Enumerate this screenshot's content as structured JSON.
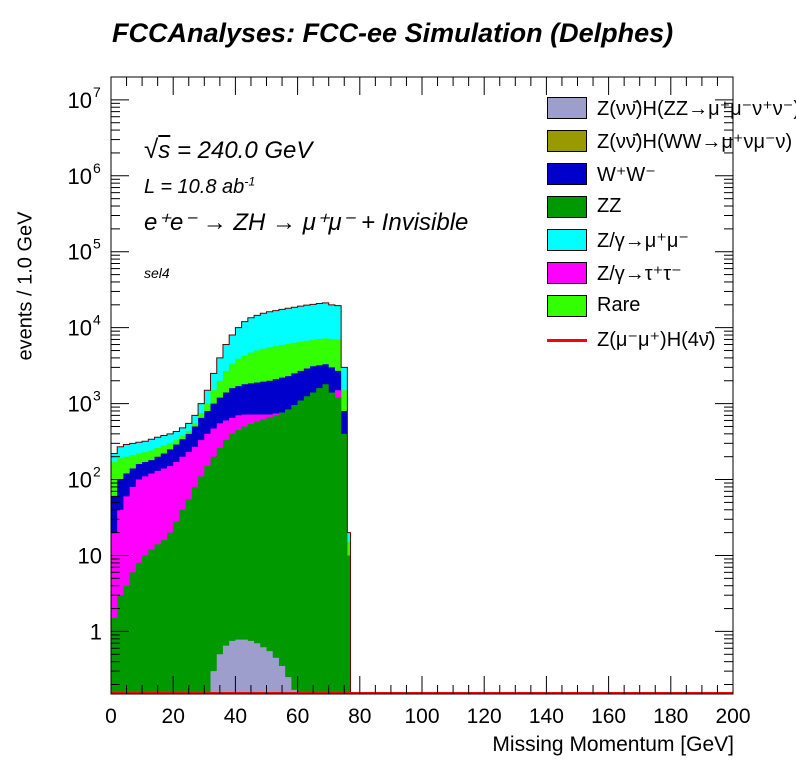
{
  "title": "FCCAnalyses: FCC-ee Simulation (Delphes)",
  "annotations": {
    "sqrt_s": "= 240.0 GeV",
    "lumi": "L = 10.8 ab",
    "lumi_exp": "-1",
    "process": "e⁺e⁻ → ZH → μ⁺μ⁻ + Invisible",
    "selection": "sel4"
  },
  "legend": [
    {
      "label": "Z(νν̄)H(ZZ→μ⁺μ⁻ν⁺ν⁻)",
      "color": "#9e9ecc",
      "style": "box"
    },
    {
      "label": "Z(νν̄)H(WW→μ⁺νμ⁻ν)",
      "color": "#999900",
      "style": "box"
    },
    {
      "label": "W⁺W⁻",
      "color": "#0000cc",
      "style": "box"
    },
    {
      "label": "ZZ",
      "color": "#009900",
      "style": "box"
    },
    {
      "label": "Z/γ→μ⁺μ⁻",
      "color": "#00ffff",
      "style": "box"
    },
    {
      "label": "Z/γ→τ⁺τ⁻",
      "color": "#ff00ff",
      "style": "box"
    },
    {
      "label": "Rare",
      "color": "#33ff00",
      "style": "box"
    },
    {
      "label": "Z(μ⁻μ⁺)H(4ν̄)",
      "color": "#ff0000",
      "style": "line"
    }
  ],
  "chart_data": {
    "type": "area",
    "stacked": true,
    "log_y": true,
    "title": "FCCAnalyses: FCC-ee Simulation (Delphes)",
    "xlabel": "Missing Momentum [GeV]",
    "ylabel": "events / 1.0 GeV",
    "xlim": [
      0,
      200
    ],
    "ylim": [
      0.15,
      20000000
    ],
    "x_ticks": [
      0,
      20,
      40,
      60,
      80,
      100,
      120,
      140,
      160,
      180,
      200
    ],
    "y_ticks": [
      {
        "value": 1,
        "label": "1"
      },
      {
        "value": 10,
        "label": "10"
      },
      {
        "value": 100,
        "label": "10",
        "exp": "2"
      },
      {
        "value": 1000,
        "label": "10",
        "exp": "3"
      },
      {
        "value": 10000,
        "label": "10",
        "exp": "4"
      },
      {
        "value": 100000,
        "label": "10",
        "exp": "5"
      },
      {
        "value": 1000000,
        "label": "10",
        "exp": "6"
      },
      {
        "value": 10000000,
        "label": "10",
        "exp": "7"
      }
    ],
    "x": [
      0,
      2,
      4,
      6,
      8,
      10,
      12,
      14,
      16,
      18,
      20,
      22,
      24,
      26,
      28,
      30,
      32,
      34,
      36,
      38,
      40,
      42,
      44,
      46,
      48,
      50,
      52,
      54,
      56,
      58,
      60,
      62,
      64,
      66,
      68,
      70,
      72,
      74,
      76,
      77,
      200
    ],
    "stack_tops": [
      {
        "name": "ZH(ZZ) signal",
        "color": "#9e9ecc",
        "values": [
          0,
          0,
          0,
          0,
          0,
          0,
          0,
          0,
          0,
          0,
          0,
          0,
          0,
          0,
          0,
          0.15,
          0.3,
          0.5,
          0.65,
          0.75,
          0.78,
          0.78,
          0.75,
          0.7,
          0.62,
          0.55,
          0.45,
          0.35,
          0.25,
          0.17,
          0.15,
          0.15,
          0,
          0,
          0,
          0,
          0,
          0,
          0,
          0,
          0
        ]
      },
      {
        "name": "ZZ",
        "color": "#009900",
        "values": [
          1.5,
          3,
          4,
          6,
          8,
          10,
          12,
          14,
          16,
          20,
          28,
          40,
          55,
          80,
          110,
          150,
          200,
          260,
          330,
          400,
          450,
          500,
          540,
          580,
          620,
          660,
          700,
          760,
          840,
          960,
          1100,
          1250,
          1400,
          1600,
          1800,
          1400,
          1200,
          400,
          10,
          0.15,
          0.15
        ]
      },
      {
        "name": "Z/γ→τ⁺τ⁻",
        "color": "#ff00ff",
        "values": [
          20,
          40,
          60,
          80,
          100,
          110,
          120,
          130,
          140,
          150,
          170,
          200,
          230,
          270,
          330,
          400,
          470,
          550,
          600,
          650,
          700,
          720,
          720,
          720,
          720,
          720,
          740,
          760,
          800,
          850,
          900,
          950,
          1000,
          1100,
          1250,
          1400,
          1500,
          400,
          10,
          0.15,
          0.15
        ]
      },
      {
        "name": "W⁺W⁻",
        "color": "#0000cc",
        "values": [
          60,
          100,
          120,
          140,
          160,
          170,
          180,
          200,
          220,
          250,
          290,
          340,
          400,
          500,
          650,
          800,
          1000,
          1200,
          1400,
          1600,
          1700,
          1800,
          1850,
          1900,
          1950,
          2000,
          2100,
          2200,
          2300,
          2500,
          2700,
          2900,
          3100,
          3200,
          3300,
          3000,
          2700,
          800,
          10,
          0.15,
          0.15
        ]
      },
      {
        "name": "Rare",
        "color": "#33ff00",
        "values": [
          170,
          190,
          200,
          210,
          220,
          230,
          240,
          260,
          280,
          300,
          330,
          380,
          440,
          550,
          750,
          1000,
          1500,
          2000,
          2700,
          3300,
          3900,
          4300,
          4700,
          5000,
          5300,
          5500,
          5700,
          5900,
          6100,
          6300,
          6500,
          6700,
          6900,
          7100,
          7200,
          7100,
          7000,
          1500,
          15,
          0.15,
          0.15
        ]
      },
      {
        "name": "Z/γ→μ⁺μ⁻",
        "color": "#00ffff",
        "values": [
          220,
          270,
          290,
          300,
          310,
          320,
          340,
          360,
          380,
          400,
          430,
          480,
          550,
          700,
          1000,
          1500,
          2500,
          4000,
          6000,
          8000,
          10000,
          12000,
          13500,
          14500,
          15500,
          16200,
          16800,
          17400,
          18000,
          18600,
          19200,
          19800,
          20300,
          20800,
          21200,
          20000,
          19500,
          3000,
          20,
          0.15,
          0.15
        ]
      }
    ],
    "signal_line": {
      "name": "Z(μ⁻μ⁺)H(4ν̄)",
      "color": "#ff0000",
      "values": [
        0.15,
        0.15,
        0.15,
        0.15,
        0.15,
        0.15,
        0.15,
        0.15,
        0.15,
        0.15,
        0.15,
        0.15,
        0.15,
        0.15,
        0.15,
        0.15,
        0.15,
        0.15,
        0.15,
        0.15,
        0.15,
        0.15,
        0.15,
        0.15,
        0.15,
        0.15,
        0.15,
        0.15,
        0.15,
        0.15,
        0.15,
        0.15,
        0.15,
        0.15,
        0.15,
        0.15,
        0.15,
        0.15,
        0.15,
        0.15,
        0.15
      ]
    }
  }
}
